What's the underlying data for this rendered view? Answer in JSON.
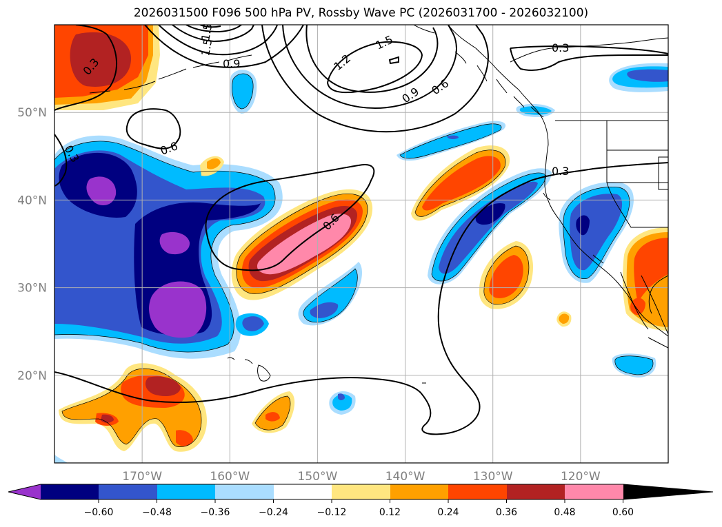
{
  "title": "2026031500 F096 500 hPa PV, Rossby Wave PC (2026031700 - 2026032100)",
  "map": {
    "lon_range": [
      -180,
      -110
    ],
    "lat_range": [
      10,
      60
    ],
    "lat_ticks": [
      {
        "value": 50,
        "label": "50°N"
      },
      {
        "value": 40,
        "label": "40°N"
      },
      {
        "value": 30,
        "label": "30°N"
      },
      {
        "value": 20,
        "label": "20°N"
      }
    ],
    "lon_ticks": [
      {
        "value": -170,
        "label": "170°W"
      },
      {
        "value": -160,
        "label": "160°W"
      },
      {
        "value": -150,
        "label": "150°W"
      },
      {
        "value": -140,
        "label": "140°W"
      },
      {
        "value": -130,
        "label": "130°W"
      },
      {
        "value": -120,
        "label": "120°W"
      }
    ],
    "gridlines": true
  },
  "contour_labels": [
    "0.3",
    "1.5",
    "1.5",
    "0.9",
    "1.2",
    "1.5",
    "0.9",
    "0.6",
    "0.3",
    "0.3",
    "0.6",
    "0.6",
    "0.3"
  ],
  "colorbar": {
    "levels": [
      "−0.60",
      "−0.48",
      "−0.36",
      "−0.24",
      "−0.12",
      "0.12",
      "0.24",
      "0.36",
      "0.48",
      "0.60"
    ],
    "colors": {
      "below": "#9933cc",
      "n048": "#000080",
      "n036": "#3355cc",
      "n024": "#00bbff",
      "n012": "#aaddff",
      "zero": "#ffffff",
      "p012": "#ffe680",
      "p024": "#ffa000",
      "p036": "#ff4500",
      "p048": "#b22222",
      "above": "#ff88aa"
    }
  }
}
